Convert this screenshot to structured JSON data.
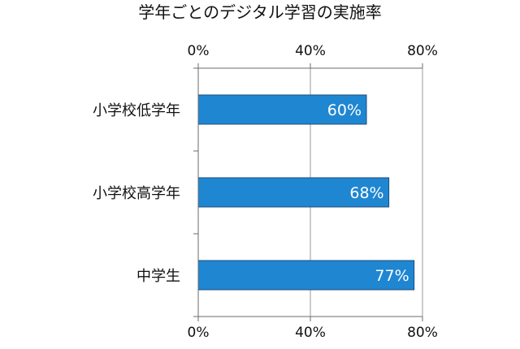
{
  "chart_data": {
    "type": "bar",
    "orientation": "horizontal",
    "title": "学年ごとのデジタル学習の実施率",
    "categories": [
      "小学校低学年",
      "小学校高学年",
      "中学生"
    ],
    "values": [
      60,
      68,
      77
    ],
    "data_labels": [
      "60%",
      "68%",
      "77%"
    ],
    "xlim": [
      0,
      80
    ],
    "x_ticks": [
      0,
      40,
      80
    ],
    "x_tick_labels": [
      "0%",
      "40%",
      "80%"
    ],
    "x_axis_top": true,
    "x_axis_bottom": true,
    "grid": "vertical",
    "legend": "none",
    "bar_color": "#1f86d1",
    "bar_border_color": "#1f4e79",
    "label_color": "#ffffff",
    "axis_color": "#6b6b6b",
    "text_color": "#111111"
  }
}
